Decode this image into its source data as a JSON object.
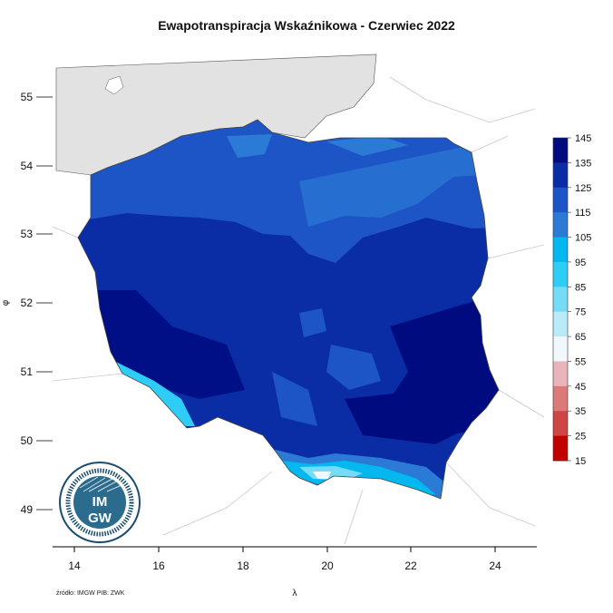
{
  "title": "Ewapotranspiracja Wskaźnikowa - Czerwiec 2022",
  "source": "źródło: IMGW PIB: ZWK",
  "logo": {
    "text_top": "IM",
    "text_bottom": "GW",
    "icon": "imgw-logo"
  },
  "map": {
    "x_axis": {
      "label": "λ",
      "ticks": [
        "14",
        "16",
        "18",
        "20",
        "22",
        "24"
      ]
    },
    "y_axis": {
      "label": "φ",
      "ticks": [
        "49",
        "50",
        "51",
        "52",
        "53",
        "54",
        "55"
      ]
    },
    "colors": {
      "sea": "#e2e2e2",
      "border": "#bfbfbf"
    }
  },
  "legend": {
    "ticks": [
      "145",
      "135",
      "125",
      "115",
      "105",
      "95",
      "85",
      "75",
      "65",
      "55",
      "45",
      "35",
      "25",
      "15"
    ],
    "colors": [
      "#000b80",
      "#0a2da6",
      "#1d55c7",
      "#2b7bd6",
      "#03b8ef",
      "#2ecdf6",
      "#74dcf7",
      "#b8eaf8",
      "#f0f8fd",
      "#e9b4ba",
      "#dc7a7a",
      "#cf4444",
      "#c20000"
    ]
  }
}
